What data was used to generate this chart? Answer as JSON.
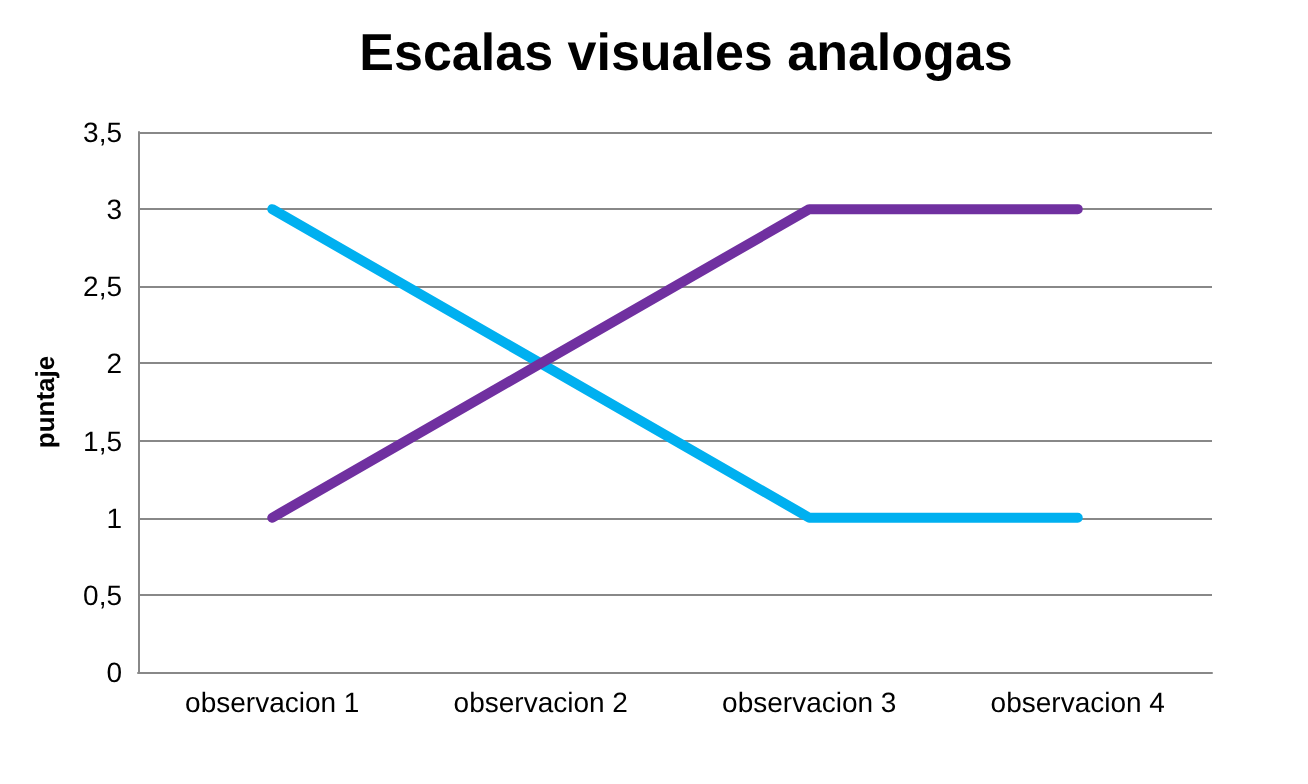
{
  "chart_data": {
    "type": "line",
    "title": "Escalas visuales analogas",
    "ylabel": "puntaje",
    "categories": [
      "observacion 1",
      "observacion 2",
      "observacion 3",
      "observacion 4"
    ],
    "series": [
      {
        "color": "#00b0f0",
        "values": [
          3,
          2,
          1,
          1
        ]
      },
      {
        "color": "#7030a0",
        "values": [
          1,
          2,
          3,
          3
        ]
      }
    ],
    "ylim": [
      0,
      3.5
    ],
    "yticks": [
      0,
      {
        "value": 0.5,
        "label": "0,5"
      },
      1,
      {
        "value": 1.5,
        "label": "1,5"
      },
      2,
      {
        "value": 2.5,
        "label": "2,5"
      },
      3,
      {
        "value": 3.5,
        "label": "3,5"
      }
    ],
    "grid": "y",
    "marker": "none",
    "line_style": "solid"
  }
}
